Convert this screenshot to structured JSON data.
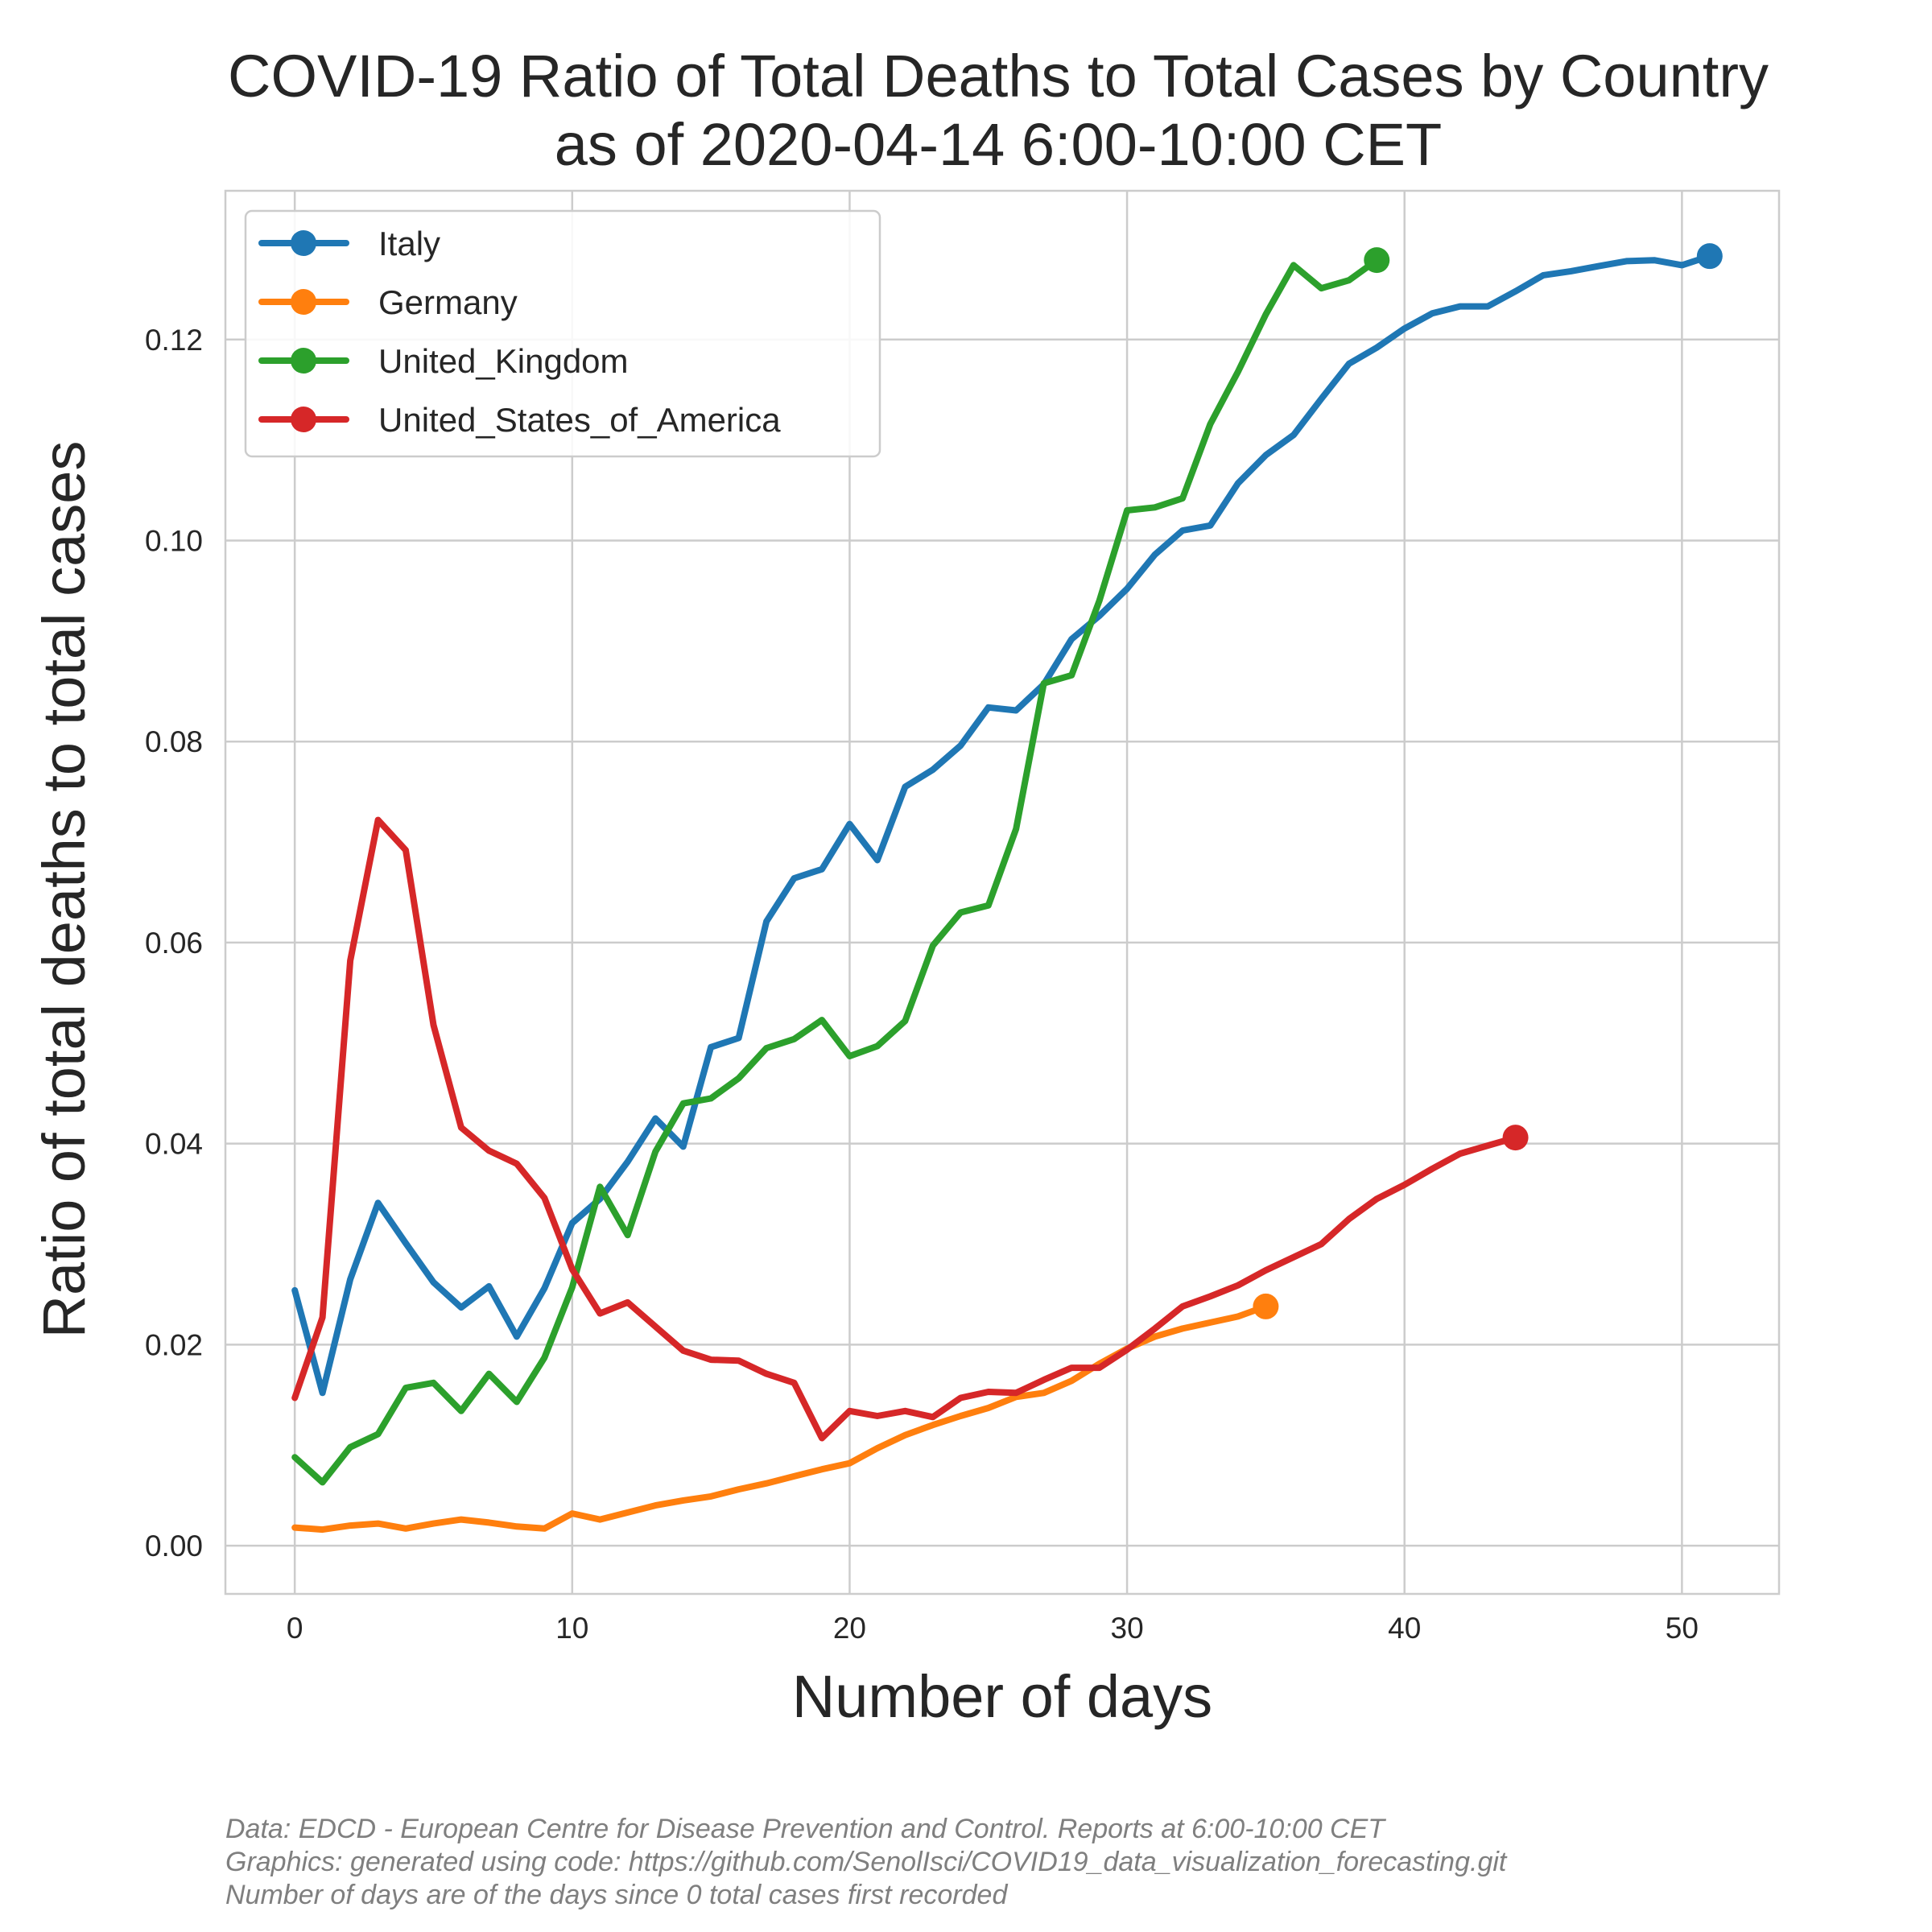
{
  "chart_data": {
    "type": "line",
    "title": [
      "COVID-19  Ratio of Total Deaths to Total Cases by Country",
      "as of 2020-04-14 6:00-10:00 CET"
    ],
    "xlabel": "Number of days",
    "ylabel": "Ratio of total deaths to total cases",
    "xlim": [
      -2.5,
      53.5
    ],
    "ylim": [
      -0.0048,
      0.1348
    ],
    "xticks": [
      0,
      10,
      20,
      30,
      40,
      50
    ],
    "xtick_labels": [
      "0",
      "10",
      "20",
      "30",
      "40",
      "50"
    ],
    "yticks": [
      0.0,
      0.02,
      0.04,
      0.06,
      0.08,
      0.1,
      0.12
    ],
    "ytick_labels": [
      "0.00",
      "0.02",
      "0.04",
      "0.06",
      "0.08",
      "0.10",
      "0.12"
    ],
    "grid": true,
    "legend_position": "top-left",
    "series": [
      {
        "name": "Italy",
        "color": "#1f77b4",
        "x": [
          0,
          1,
          2,
          3,
          4,
          5,
          6,
          7,
          8,
          9,
          10,
          11,
          12,
          13,
          14,
          15,
          16,
          17,
          18,
          19,
          20,
          21,
          22,
          23,
          24,
          25,
          26,
          27,
          28,
          29,
          30,
          31,
          32,
          33,
          34,
          35,
          36,
          37,
          38,
          39,
          40,
          41,
          42,
          43,
          44,
          45,
          46,
          47,
          48,
          49,
          50,
          51
        ],
        "y": [
          0.0254,
          0.0152,
          0.0265,
          0.0341,
          0.0301,
          0.0262,
          0.0237,
          0.0258,
          0.0208,
          0.0256,
          0.0321,
          0.0345,
          0.0382,
          0.0425,
          0.0397,
          0.0496,
          0.0505,
          0.0621,
          0.0664,
          0.0673,
          0.0718,
          0.0682,
          0.0755,
          0.0772,
          0.0796,
          0.0834,
          0.0831,
          0.0857,
          0.0902,
          0.0925,
          0.0952,
          0.0986,
          0.101,
          0.1015,
          0.1057,
          0.1085,
          0.1105,
          0.1141,
          0.1176,
          0.1192,
          0.1211,
          0.1226,
          0.1233,
          0.1233,
          0.1248,
          0.1264,
          0.1268,
          0.1273,
          0.1278,
          0.1279,
          0.1274,
          0.1283
        ]
      },
      {
        "name": "Germany",
        "color": "#ff7f0e",
        "x": [
          0,
          1,
          2,
          3,
          4,
          5,
          6,
          7,
          8,
          9,
          10,
          11,
          12,
          13,
          14,
          15,
          16,
          17,
          18,
          19,
          20,
          21,
          22,
          23,
          24,
          25,
          26,
          27,
          28,
          29,
          30,
          31,
          32,
          33,
          34,
          35
        ],
        "y": [
          0.0018,
          0.0016,
          0.002,
          0.0022,
          0.0017,
          0.0022,
          0.0026,
          0.0023,
          0.0019,
          0.0017,
          0.0032,
          0.0026,
          0.0033,
          0.004,
          0.0045,
          0.0049,
          0.0056,
          0.0062,
          0.0069,
          0.0076,
          0.0082,
          0.0097,
          0.011,
          0.012,
          0.0129,
          0.0137,
          0.0148,
          0.0152,
          0.0164,
          0.0181,
          0.0196,
          0.0208,
          0.0216,
          0.0222,
          0.0228,
          0.0238
        ]
      },
      {
        "name": "United_Kingdom",
        "color": "#2ca02c",
        "x": [
          0,
          1,
          2,
          3,
          4,
          5,
          6,
          7,
          8,
          9,
          10,
          11,
          12,
          13,
          14,
          15,
          16,
          17,
          18,
          19,
          20,
          21,
          22,
          23,
          24,
          25,
          26,
          27,
          28,
          29,
          30,
          31,
          32,
          33,
          34,
          35,
          36,
          37,
          38,
          39
        ],
        "y": [
          0.0088,
          0.0063,
          0.0098,
          0.0111,
          0.0157,
          0.0162,
          0.0134,
          0.0171,
          0.0143,
          0.0187,
          0.0257,
          0.0357,
          0.0309,
          0.0392,
          0.044,
          0.0445,
          0.0465,
          0.0495,
          0.0504,
          0.0523,
          0.0487,
          0.0497,
          0.0522,
          0.0597,
          0.063,
          0.0637,
          0.0713,
          0.0858,
          0.0866,
          0.094,
          0.103,
          0.1033,
          0.1042,
          0.1116,
          0.1168,
          0.1225,
          0.1274,
          0.1251,
          0.1259,
          0.1279
        ]
      },
      {
        "name": "United_States_of_America",
        "color": "#d62728",
        "x": [
          0,
          1,
          2,
          3,
          4,
          5,
          6,
          7,
          8,
          9,
          10,
          11,
          12,
          13,
          14,
          15,
          16,
          17,
          18,
          19,
          20,
          21,
          22,
          23,
          24,
          25,
          26,
          27,
          28,
          29,
          30,
          31,
          32,
          33,
          34,
          35,
          36,
          37,
          38,
          39,
          40,
          41,
          42,
          43,
          44
        ],
        "y": [
          0.0147,
          0.0227,
          0.0582,
          0.0722,
          0.0692,
          0.0518,
          0.0416,
          0.0393,
          0.038,
          0.0346,
          0.0275,
          0.0231,
          0.0242,
          0.0218,
          0.0194,
          0.0185,
          0.0184,
          0.0171,
          0.0162,
          0.0107,
          0.0134,
          0.0129,
          0.0134,
          0.0128,
          0.0147,
          0.0153,
          0.0152,
          0.0165,
          0.0177,
          0.0177,
          0.0195,
          0.0216,
          0.0238,
          0.0248,
          0.0259,
          0.0274,
          0.0287,
          0.03,
          0.0325,
          0.0345,
          0.0359,
          0.0375,
          0.039,
          0.0398,
          0.0406
        ]
      }
    ],
    "footnotes": [
      "Data: EDCD - European Centre for Disease Prevention and Control. Reports at 6:00-10:00 CET",
      "Graphics: generated using code: https://github.com/SenolIsci/COVID19_data_visualization_forecasting.git",
      "Number of days are of the days since 0 total cases first recorded"
    ]
  }
}
